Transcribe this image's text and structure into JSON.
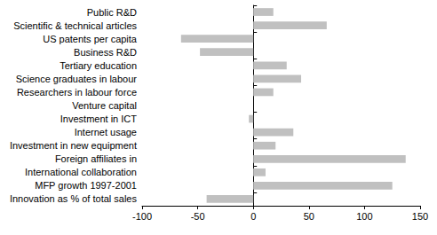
{
  "chart_data": {
    "type": "bar",
    "orientation": "horizontal",
    "categories": [
      "Public R&D",
      "Scientific & technical articles",
      "US patents per capita",
      "Business R&D",
      "Tertiary education",
      "Science graduates in labour",
      "Researchers in labour force",
      "Venture capital",
      "Investment in ICT",
      "Internet usage",
      "Investment in new equipment",
      "Foreign affiliates in",
      "International collaboration",
      "MFP growth 1997-2001",
      "Innovation as % of total sales"
    ],
    "values": [
      18,
      66,
      -65,
      -48,
      30,
      43,
      18,
      0,
      -4,
      36,
      20,
      137,
      11,
      125,
      -42
    ],
    "color": "#c0c0c0",
    "xlim": [
      -100,
      150
    ],
    "xticks": [
      -100,
      -50,
      0,
      50,
      100,
      150
    ],
    "grid": false
  }
}
